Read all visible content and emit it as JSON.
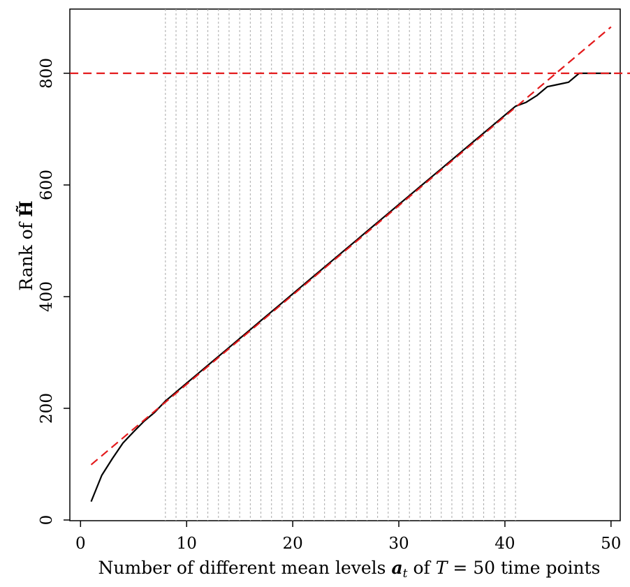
{
  "chart_data": {
    "type": "line",
    "xlabel_parts": [
      "Number of different mean levels ",
      "a",
      "t",
      " of ",
      "T",
      " = 50 time points"
    ],
    "ylabel_parts": [
      "Rank of ",
      "H̃"
    ],
    "xlim": [
      1,
      50
    ],
    "ylim": [
      0,
      880
    ],
    "x_ticks": [
      0,
      10,
      20,
      30,
      40,
      50
    ],
    "y_ticks": [
      0,
      200,
      400,
      600,
      800
    ],
    "vertical_guides": [
      8,
      9,
      10,
      11,
      12,
      13,
      14,
      15,
      16,
      17,
      18,
      19,
      20,
      21,
      22,
      23,
      24,
      25,
      26,
      27,
      28,
      29,
      30,
      31,
      32,
      33,
      34,
      35,
      36,
      37,
      38,
      39,
      40,
      41
    ],
    "series": [
      {
        "style": "solid",
        "color": "#000000",
        "x": [
          1,
          2,
          3,
          4,
          5,
          6,
          7,
          8,
          9,
          10,
          11,
          12,
          13,
          14,
          15,
          16,
          17,
          18,
          19,
          20,
          21,
          22,
          23,
          24,
          25,
          26,
          27,
          28,
          29,
          30,
          31,
          32,
          33,
          34,
          35,
          36,
          37,
          38,
          39,
          40,
          41,
          42,
          43,
          44,
          45,
          46,
          47,
          48,
          49,
          50
        ],
        "y": [
          33,
          80,
          110,
          138,
          158,
          177,
          193,
          213,
          229,
          245,
          261,
          277,
          293,
          309,
          325,
          341,
          357,
          373,
          389,
          405,
          421,
          437,
          453,
          469,
          485,
          501,
          517,
          533,
          549,
          565,
          581,
          597,
          613,
          629,
          645,
          661,
          677,
          693,
          709,
          725,
          741,
          748,
          760,
          776,
          780,
          784,
          800,
          800,
          800,
          800
        ]
      },
      {
        "style": "dashed",
        "color": "#e31a1c",
        "x": [
          1,
          50
        ],
        "y": [
          99,
          883
        ]
      },
      {
        "style": "dashed",
        "color": "#e31a1c",
        "x": [
          -1,
          53
        ],
        "y": [
          800,
          800
        ]
      }
    ]
  }
}
